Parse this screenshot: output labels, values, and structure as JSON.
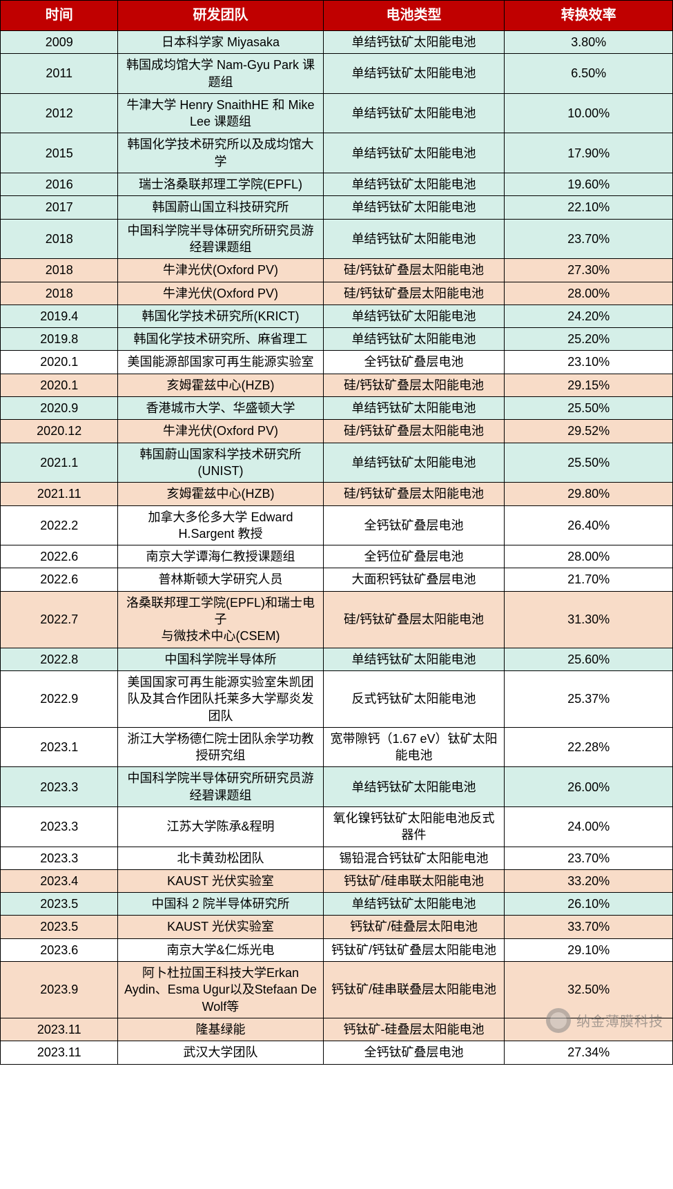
{
  "table": {
    "header_bg": "#c00000",
    "header_fg": "#ffffff",
    "row_colors": {
      "single": "#d5efe8",
      "si_tandem": "#f8dcc8",
      "white": "#ffffff"
    },
    "col_widths_pct": [
      17.5,
      30.5,
      27,
      25
    ],
    "columns": [
      "时间",
      "研发团队",
      "电池类型",
      "转换效率"
    ],
    "rows": [
      {
        "bg": "single",
        "cells": [
          "2009",
          "日本科学家 Miyasaka",
          "单结钙钛矿太阳能电池",
          "3.80%"
        ]
      },
      {
        "bg": "single",
        "cells": [
          "2011",
          "韩国成均馆大学 Nam-Gyu Park 课题组",
          "单结钙钛矿太阳能电池",
          "6.50%"
        ]
      },
      {
        "bg": "single",
        "cells": [
          "2012",
          "牛津大学 Henry SnaithHE 和 Mike Lee 课题组",
          "单结钙钛矿太阳能电池",
          "10.00%"
        ]
      },
      {
        "bg": "single",
        "cells": [
          "2015",
          "韩国化学技术研究所以及成均馆大学",
          "单结钙钛矿太阳能电池",
          "17.90%"
        ]
      },
      {
        "bg": "single",
        "cells": [
          "2016",
          "瑞士洛桑联邦理工学院(EPFL)",
          "单结钙钛矿太阳能电池",
          "19.60%"
        ]
      },
      {
        "bg": "single",
        "cells": [
          "2017",
          "韩国蔚山国立科技研究所",
          "单结钙钛矿太阳能电池",
          "22.10%"
        ]
      },
      {
        "bg": "single",
        "cells": [
          "2018",
          "中国科学院半导体研究所研究员游经碧课题组",
          "单结钙钛矿太阳能电池",
          "23.70%"
        ]
      },
      {
        "bg": "si_tandem",
        "cells": [
          "2018",
          "牛津光伏(Oxford PV)",
          "硅/钙钛矿叠层太阳能电池",
          "27.30%"
        ]
      },
      {
        "bg": "si_tandem",
        "cells": [
          "2018",
          "牛津光伏(Oxford PV)",
          "硅/钙钛矿叠层太阳能电池",
          "28.00%"
        ]
      },
      {
        "bg": "single",
        "cells": [
          "2019.4",
          "韩国化学技术研究所(KRICT)",
          "单结钙钛矿太阳能电池",
          "24.20%"
        ]
      },
      {
        "bg": "single",
        "cells": [
          "2019.8",
          "韩国化学技术研究所、麻省理工",
          "单结钙钛矿太阳能电池",
          "25.20%"
        ]
      },
      {
        "bg": "white",
        "cells": [
          "2020.1",
          "美国能源部国家可再生能源实验室",
          "全钙钛矿叠层电池",
          "23.10%"
        ]
      },
      {
        "bg": "si_tandem",
        "cells": [
          "2020.1",
          "亥姆霍兹中心(HZB)",
          "硅/钙钛矿叠层太阳能电池",
          "29.15%"
        ]
      },
      {
        "bg": "single",
        "cells": [
          "2020.9",
          "香港城市大学、华盛顿大学",
          "单结钙钛矿太阳能电池",
          "25.50%"
        ]
      },
      {
        "bg": "si_tandem",
        "cells": [
          "2020.12",
          "牛津光伏(Oxford PV)",
          "硅/钙钛矿叠层太阳能电池",
          "29.52%"
        ]
      },
      {
        "bg": "single",
        "cells": [
          "2021.1",
          "韩国蔚山国家科学技术研究所(UNIST)",
          "单结钙钛矿太阳能电池",
          "25.50%"
        ]
      },
      {
        "bg": "si_tandem",
        "cells": [
          "2021.11",
          "亥姆霍兹中心(HZB)",
          "硅/钙钛矿叠层太阳能电池",
          "29.80%"
        ]
      },
      {
        "bg": "white",
        "cells": [
          "2022.2",
          "加拿大多伦多大学 Edward H.Sargent 教授",
          "全钙钛矿叠层电池",
          "26.40%"
        ]
      },
      {
        "bg": "white",
        "cells": [
          "2022.6",
          "南京大学谭海仁教授课题组",
          "全钙位矿叠层电池",
          "28.00%"
        ]
      },
      {
        "bg": "white",
        "cells": [
          "2022.6",
          "普林斯顿大学研究人员",
          "大面积钙钛矿叠层电池",
          "21.70%"
        ]
      },
      {
        "bg": "si_tandem",
        "cells": [
          "2022.7",
          "洛桑联邦理工学院(EPFL)和瑞士电子\n与微技术中心(CSEM)",
          "硅/钙钛矿叠层太阳能电池",
          "31.30%"
        ]
      },
      {
        "bg": "single",
        "cells": [
          "2022.8",
          "中国科学院半导体所",
          "单结钙钛矿太阳能电池",
          "25.60%"
        ]
      },
      {
        "bg": "white",
        "cells": [
          "2022.9",
          "美国国家可再生能源实验室朱凯团队及其合作团队托莱多大学鄢炎发团队",
          "反式钙钛矿太阳能电池",
          "25.37%"
        ]
      },
      {
        "bg": "white",
        "cells": [
          "2023.1",
          "浙江大学杨德仁院士团队余学功教授研究组",
          "宽带隙钙（1.67 eV）钛矿太阳能电池",
          "22.28%"
        ]
      },
      {
        "bg": "single",
        "cells": [
          "2023.3",
          "中国科学院半导体研究所研究员游经碧课题组",
          "单结钙钛矿太阳能电池",
          "26.00%"
        ]
      },
      {
        "bg": "white",
        "cells": [
          "2023.3",
          "江苏大学陈承&程明",
          "氧化镍钙钛矿太阳能电池反式器件",
          "24.00%"
        ]
      },
      {
        "bg": "white",
        "cells": [
          "2023.3",
          "北卡黄劲松团队",
          "锡铅混合钙钛矿太阳能电池",
          "23.70%"
        ]
      },
      {
        "bg": "si_tandem",
        "cells": [
          "2023.4",
          "KAUST 光伏实验室",
          "钙钛矿/硅串联太阳能电池",
          "33.20%"
        ]
      },
      {
        "bg": "single",
        "cells": [
          "2023.5",
          "中国科 2 院半导体研究所",
          "单结钙钛矿太阳能电池",
          "26.10%"
        ]
      },
      {
        "bg": "si_tandem",
        "cells": [
          "2023.5",
          "KAUST 光伏实验室",
          "钙钛矿/硅叠层太阳电池",
          "33.70%"
        ]
      },
      {
        "bg": "white",
        "cells": [
          "2023.6",
          "南京大学&仁烁光电",
          "钙钛矿/钙钛矿叠层太阳能电池",
          "29.10%"
        ]
      },
      {
        "bg": "si_tandem",
        "cells": [
          "2023.9",
          "阿卜杜拉国王科技大学Erkan Aydin、Esma Ugur以及Stefaan De Wolf等",
          "钙钛矿/硅串联叠层太阳能电池",
          "32.50%"
        ]
      },
      {
        "bg": "si_tandem",
        "cells": [
          "2023.11",
          "隆基绿能",
          "钙钛矿-硅叠层太阳能电池",
          ""
        ]
      },
      {
        "bg": "white",
        "cells": [
          "2023.11",
          "武汉大学团队",
          "全钙钛矿叠层电池",
          "27.34%"
        ]
      }
    ]
  },
  "watermark": {
    "text": "纳金薄膜科技"
  }
}
